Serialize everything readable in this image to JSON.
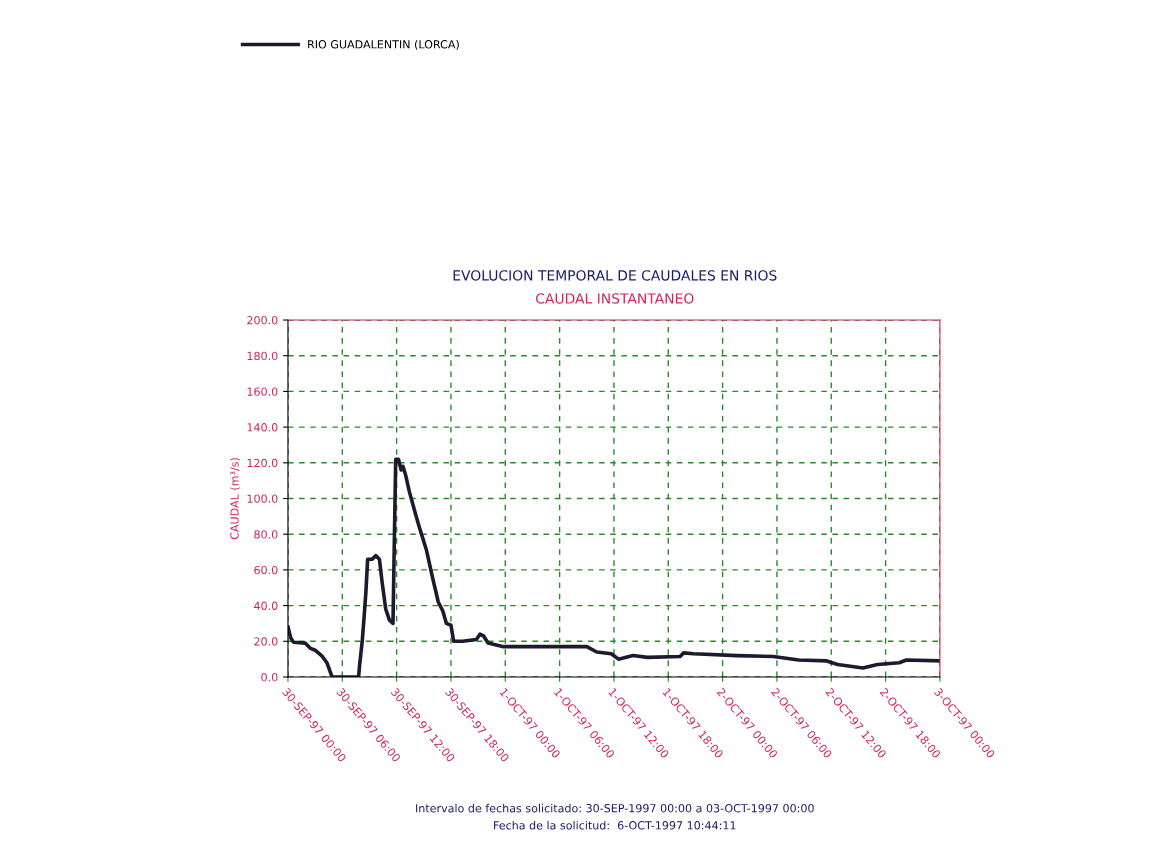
{
  "chart_data": {
    "type": "line",
    "title": "EVOLUCION TEMPORAL DE CAUDALES EN RIOS",
    "subtitle": "CAUDAL INSTANTANEO",
    "ylabel": "CAUDAL (m³/s)",
    "annotations": [
      "Intervalo de fechas solicitado: 30-SEP-1997 00:00 a 03-OCT-1997 00:00",
      "Fecha de la solicitud:  6-OCT-1997 10:44:11"
    ],
    "xlim": [
      "1997-09-30T00:00",
      "1997-10-03T00:00"
    ],
    "xticks": [
      {
        "value": "1997-09-30T00:00",
        "label": "30-SEP-97 00:00"
      },
      {
        "value": "1997-09-30T06:00",
        "label": "30-SEP-97 06:00"
      },
      {
        "value": "1997-09-30T12:00",
        "label": "30-SEP-97 12:00"
      },
      {
        "value": "1997-09-30T18:00",
        "label": "30-SEP-97 18:00"
      },
      {
        "value": "1997-10-01T00:00",
        "label": "1-OCT-97 00:00"
      },
      {
        "value": "1997-10-01T06:00",
        "label": "1-OCT-97 06:00"
      },
      {
        "value": "1997-10-01T12:00",
        "label": "1-OCT-97 12:00"
      },
      {
        "value": "1997-10-01T18:00",
        "label": "1-OCT-97 18:00"
      },
      {
        "value": "1997-10-02T00:00",
        "label": "2-OCT-97 00:00"
      },
      {
        "value": "1997-10-02T06:00",
        "label": "2-OCT-97 06:00"
      },
      {
        "value": "1997-10-02T12:00",
        "label": "2-OCT-97 12:00"
      },
      {
        "value": "1997-10-02T18:00",
        "label": "2-OCT-97 18:00"
      },
      {
        "value": "1997-10-03T00:00",
        "label": "3-OCT-97 00:00"
      }
    ],
    "ylim": [
      0,
      200
    ],
    "yticks": [
      {
        "value": 0,
        "label": "0.0"
      },
      {
        "value": 20,
        "label": "20.0"
      },
      {
        "value": 40,
        "label": "40.0"
      },
      {
        "value": 60,
        "label": "60.0"
      },
      {
        "value": 80,
        "label": "80.0"
      },
      {
        "value": 100,
        "label": "100.0"
      },
      {
        "value": 120,
        "label": "120.0"
      },
      {
        "value": 140,
        "label": "140.0"
      },
      {
        "value": 160,
        "label": "160.0"
      },
      {
        "value": 180,
        "label": "180.0"
      },
      {
        "value": 200,
        "label": "200.0"
      }
    ],
    "grid": true,
    "legend": "top left",
    "series": [
      {
        "name": "RIO GUADALENTIN (LORCA)",
        "color": "#1e1a2e",
        "x": [
          "1997-09-30T00:00",
          "1997-09-30T00:18",
          "1997-09-30T00:36",
          "1997-09-30T01:54",
          "1997-09-30T02:30",
          "1997-09-30T03:00",
          "1997-09-30T03:48",
          "1997-09-30T04:18",
          "1997-09-30T04:48",
          "1997-09-30T04:54",
          "1997-09-30T07:48",
          "1997-09-30T07:54",
          "1997-09-30T08:12",
          "1997-09-30T08:24",
          "1997-09-30T08:36",
          "1997-09-30T08:48",
          "1997-09-30T09:18",
          "1997-09-30T09:42",
          "1997-09-30T10:06",
          "1997-09-30T10:24",
          "1997-09-30T10:48",
          "1997-09-30T11:12",
          "1997-09-30T11:36",
          "1997-09-30T11:42",
          "1997-09-30T11:54",
          "1997-09-30T12:12",
          "1997-09-30T12:30",
          "1997-09-30T12:42",
          "1997-09-30T13:00",
          "1997-09-30T13:24",
          "1997-09-30T14:06",
          "1997-09-30T14:30",
          "1997-09-30T15:18",
          "1997-09-30T16:00",
          "1997-09-30T16:36",
          "1997-09-30T17:06",
          "1997-09-30T17:30",
          "1997-09-30T18:00",
          "1997-09-30T18:18",
          "1997-09-30T19:18",
          "1997-09-30T20:48",
          "1997-09-30T21:12",
          "1997-09-30T21:36",
          "1997-09-30T22:06",
          "1997-09-30T23:48",
          "1997-10-01T01:24",
          "1997-10-01T05:48",
          "1997-10-01T09:00",
          "1997-10-01T10:06",
          "1997-10-01T11:42",
          "1997-10-01T12:30",
          "1997-10-01T14:06",
          "1997-10-01T15:42",
          "1997-10-01T19:18",
          "1997-10-01T19:42",
          "1997-10-01T20:48",
          "1997-10-02T01:36",
          "1997-10-02T05:36",
          "1997-10-02T08:24",
          "1997-10-02T11:30",
          "1997-10-02T12:42",
          "1997-10-02T15:30",
          "1997-10-02T17:06",
          "1997-10-02T19:30",
          "1997-10-02T20:18",
          "1997-10-03T00:00"
        ],
        "values": [
          28,
          22,
          19.5,
          19,
          16,
          15,
          11.5,
          8,
          1,
          0,
          0,
          6,
          20,
          33,
          47,
          66,
          66,
          68,
          66,
          53,
          38,
          32,
          30,
          62,
          122,
          122,
          116,
          118,
          113,
          104,
          91,
          84,
          71,
          55,
          42,
          37,
          30,
          29,
          20,
          20,
          21,
          24,
          23,
          19,
          17,
          17,
          17,
          17,
          14,
          13,
          10,
          12,
          11,
          11.5,
          13.5,
          13,
          12,
          11.5,
          9.5,
          9,
          7,
          5,
          7,
          8,
          9.5,
          9
        ]
      }
    ]
  }
}
